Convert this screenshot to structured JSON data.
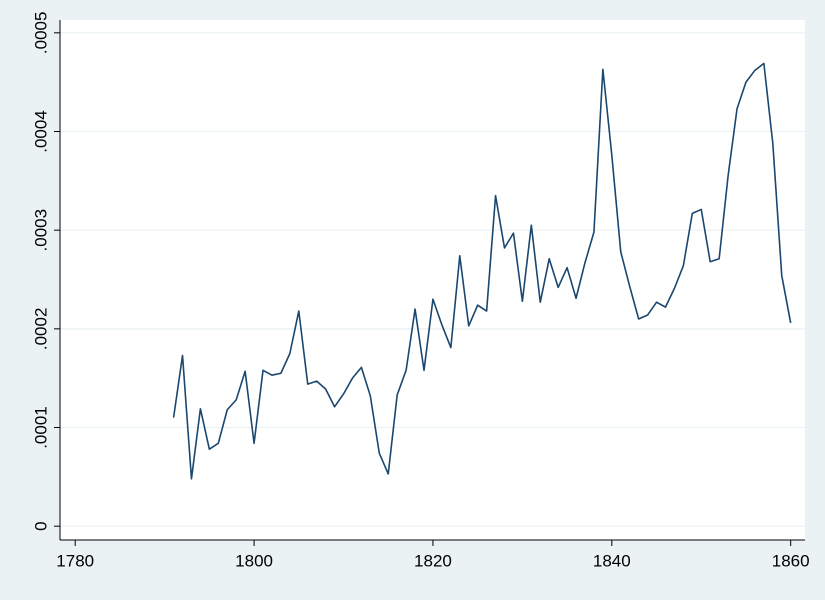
{
  "chart_data": {
    "type": "line",
    "x": [
      1791,
      1792,
      1793,
      1794,
      1795,
      1796,
      1797,
      1798,
      1799,
      1800,
      1801,
      1802,
      1803,
      1804,
      1805,
      1806,
      1807,
      1808,
      1809,
      1810,
      1811,
      1812,
      1813,
      1814,
      1815,
      1816,
      1817,
      1818,
      1819,
      1820,
      1821,
      1822,
      1823,
      1824,
      1825,
      1826,
      1827,
      1828,
      1829,
      1830,
      1831,
      1832,
      1833,
      1834,
      1835,
      1836,
      1837,
      1838,
      1839,
      1840,
      1841,
      1842,
      1843,
      1844,
      1845,
      1846,
      1847,
      1848,
      1849,
      1850,
      1851,
      1852,
      1853,
      1854,
      1855,
      1856,
      1857,
      1858,
      1859,
      1860
    ],
    "series": [
      {
        "color": "#1a476f",
        "values": [
          0.00011,
          0.000173,
          4.8e-05,
          0.000119,
          7.8e-05,
          8.4e-05,
          0.000118,
          0.000128,
          0.000157,
          8.4e-05,
          0.000158,
          0.000153,
          0.000155,
          0.000175,
          0.000218,
          0.000144,
          0.000147,
          0.000139,
          0.000121,
          0.000134,
          0.00015,
          0.000161,
          0.000132,
          7.4e-05,
          5.3e-05,
          0.000133,
          0.000158,
          0.00022,
          0.000158,
          0.00023,
          0.000204,
          0.000181,
          0.000274,
          0.000203,
          0.000224,
          0.000218,
          0.000335,
          0.000282,
          0.000297,
          0.000228,
          0.000305,
          0.000227,
          0.000271,
          0.000242,
          0.000262,
          0.000231,
          0.000267,
          0.000298,
          0.000463,
          0.000376,
          0.000278,
          0.000243,
          0.00021,
          0.000214,
          0.000227,
          0.000222,
          0.000241,
          0.000264,
          0.000317,
          0.000321,
          0.000268,
          0.000271,
          0.000355,
          0.000423,
          0.00045,
          0.000462,
          0.000469,
          0.000388,
          0.000254,
          0.000206
        ]
      }
    ],
    "xlim": [
      1778.3,
      1861.6
    ],
    "xticks": [
      1780,
      1800,
      1820,
      1840,
      1860
    ],
    "ylim": [
      -1.4e-05,
      0.000513
    ],
    "yticks": [
      0,
      {
        "value": 0.0001,
        "label": ".0001"
      },
      {
        "value": 0.0002,
        "label": ".0002"
      },
      {
        "value": 0.0003,
        "label": ".0003"
      },
      {
        "value": 0.0004,
        "label": ".0004"
      },
      {
        "value": 0.0005,
        "label": ".0005"
      }
    ],
    "grid": true
  }
}
